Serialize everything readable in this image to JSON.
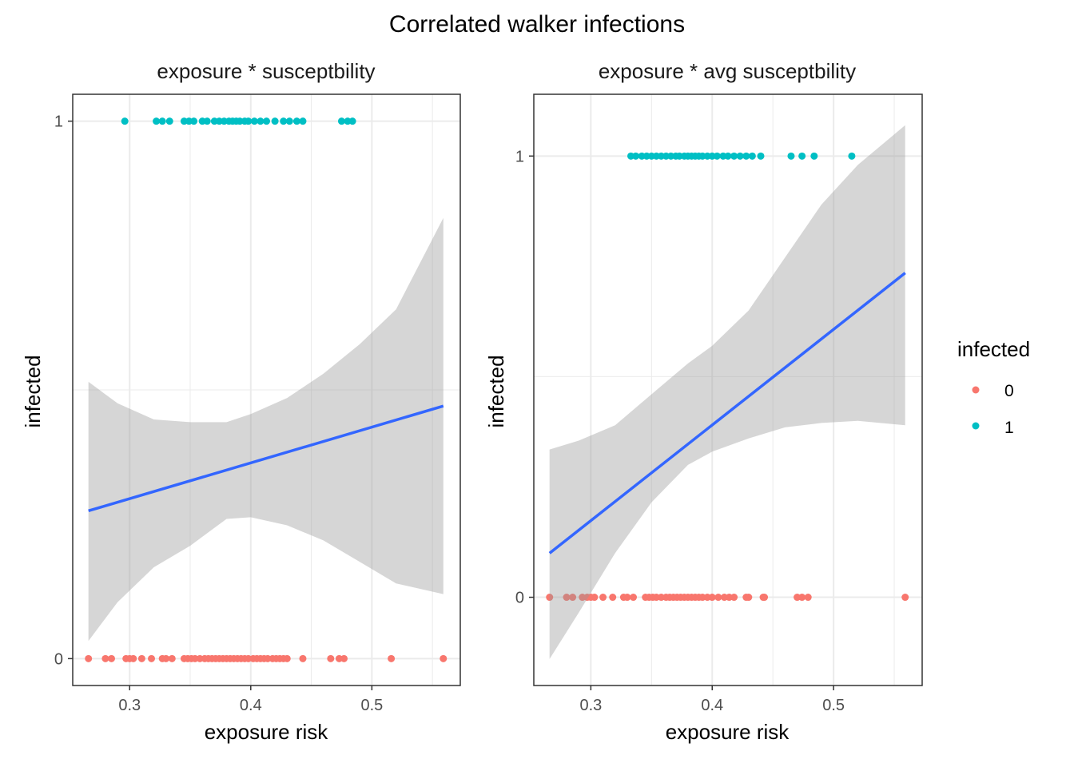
{
  "title": "Correlated walker infections",
  "legend": {
    "title": "infected",
    "entries": [
      {
        "label": "0",
        "color": "#F8766D"
      },
      {
        "label": "1",
        "color": "#00BFC4"
      }
    ]
  },
  "colors": {
    "infected_0": "#F8766D",
    "infected_1": "#00BFC4",
    "fit_line": "#3366FF",
    "ribbon": "#999999",
    "panel_border": "#333333",
    "grid": "#EBEBEB"
  },
  "chart_data": [
    {
      "type": "scatter",
      "title": "exposure * susceptbility",
      "xlabel": "exposure risk",
      "ylabel": "infected",
      "xlim": [
        0.253,
        0.573
      ],
      "ylim": [
        -0.05,
        1.05
      ],
      "x_ticks": [
        0.3,
        0.4,
        0.5
      ],
      "x_tick_labels": [
        "0.3",
        "0.4",
        "0.5"
      ],
      "y_ticks": [
        0,
        1
      ],
      "y_tick_labels": [
        "0",
        "1"
      ],
      "grid": true,
      "series": [
        {
          "name": "0",
          "points_y": 0,
          "x": [
            0.266,
            0.28,
            0.285,
            0.297,
            0.3,
            0.303,
            0.31,
            0.318,
            0.327,
            0.33,
            0.335,
            0.345,
            0.348,
            0.351,
            0.354,
            0.358,
            0.362,
            0.365,
            0.368,
            0.371,
            0.374,
            0.377,
            0.38,
            0.383,
            0.386,
            0.389,
            0.392,
            0.395,
            0.398,
            0.402,
            0.405,
            0.408,
            0.411,
            0.414,
            0.418,
            0.421,
            0.424,
            0.427,
            0.43,
            0.443,
            0.466,
            0.473,
            0.477,
            0.516,
            0.559
          ]
        },
        {
          "name": "1",
          "points_y": 1,
          "x": [
            0.296,
            0.322,
            0.327,
            0.333,
            0.345,
            0.349,
            0.353,
            0.36,
            0.364,
            0.37,
            0.374,
            0.378,
            0.382,
            0.385,
            0.388,
            0.391,
            0.395,
            0.398,
            0.403,
            0.408,
            0.413,
            0.42,
            0.427,
            0.432,
            0.438,
            0.443,
            0.475,
            0.48,
            0.484
          ]
        }
      ],
      "fit": {
        "x": [
          0.266,
          0.559
        ],
        "y": [
          0.275,
          0.47
        ]
      },
      "ci": {
        "x": [
          0.266,
          0.29,
          0.32,
          0.35,
          0.38,
          0.4,
          0.43,
          0.46,
          0.49,
          0.52,
          0.559
        ],
        "upper": [
          0.515,
          0.475,
          0.445,
          0.44,
          0.44,
          0.455,
          0.485,
          0.53,
          0.585,
          0.65,
          0.82
        ],
        "lower": [
          0.033,
          0.105,
          0.17,
          0.21,
          0.26,
          0.263,
          0.248,
          0.22,
          0.18,
          0.14,
          0.12
        ]
      }
    },
    {
      "type": "scatter",
      "title": "exposure *  avg susceptbility",
      "xlabel": "exposure risk",
      "ylabel": "infected",
      "xlim": [
        0.253,
        0.573
      ],
      "ylim": [
        -0.2,
        1.14
      ],
      "x_ticks": [
        0.3,
        0.4,
        0.5
      ],
      "x_tick_labels": [
        "0.3",
        "0.4",
        "0.5"
      ],
      "y_ticks": [
        0,
        1
      ],
      "y_tick_labels": [
        "0",
        "1"
      ],
      "grid": true,
      "series": [
        {
          "name": "0",
          "points_y": 0,
          "x": [
            0.266,
            0.28,
            0.285,
            0.293,
            0.297,
            0.3,
            0.303,
            0.31,
            0.318,
            0.327,
            0.33,
            0.335,
            0.345,
            0.348,
            0.351,
            0.354,
            0.358,
            0.362,
            0.365,
            0.368,
            0.371,
            0.374,
            0.377,
            0.38,
            0.383,
            0.386,
            0.389,
            0.392,
            0.396,
            0.4,
            0.405,
            0.41,
            0.414,
            0.418,
            0.428,
            0.43,
            0.442,
            0.443,
            0.47,
            0.474,
            0.479,
            0.559
          ]
        },
        {
          "name": "1",
          "points_y": 1,
          "x": [
            0.333,
            0.337,
            0.342,
            0.346,
            0.35,
            0.354,
            0.358,
            0.362,
            0.366,
            0.37,
            0.373,
            0.377,
            0.38,
            0.383,
            0.386,
            0.389,
            0.392,
            0.396,
            0.4,
            0.404,
            0.409,
            0.413,
            0.418,
            0.423,
            0.428,
            0.433,
            0.44,
            0.465,
            0.474,
            0.484,
            0.515
          ]
        }
      ],
      "fit": {
        "x": [
          0.266,
          0.559
        ],
        "y": [
          0.1,
          0.735
        ]
      },
      "ci": {
        "x": [
          0.266,
          0.29,
          0.32,
          0.35,
          0.38,
          0.4,
          0.43,
          0.46,
          0.49,
          0.52,
          0.559
        ],
        "upper": [
          0.335,
          0.355,
          0.39,
          0.46,
          0.53,
          0.57,
          0.65,
          0.77,
          0.89,
          0.98,
          1.07
        ],
        "lower": [
          -0.14,
          -0.035,
          0.1,
          0.215,
          0.3,
          0.33,
          0.36,
          0.385,
          0.395,
          0.4,
          0.39
        ]
      }
    }
  ]
}
